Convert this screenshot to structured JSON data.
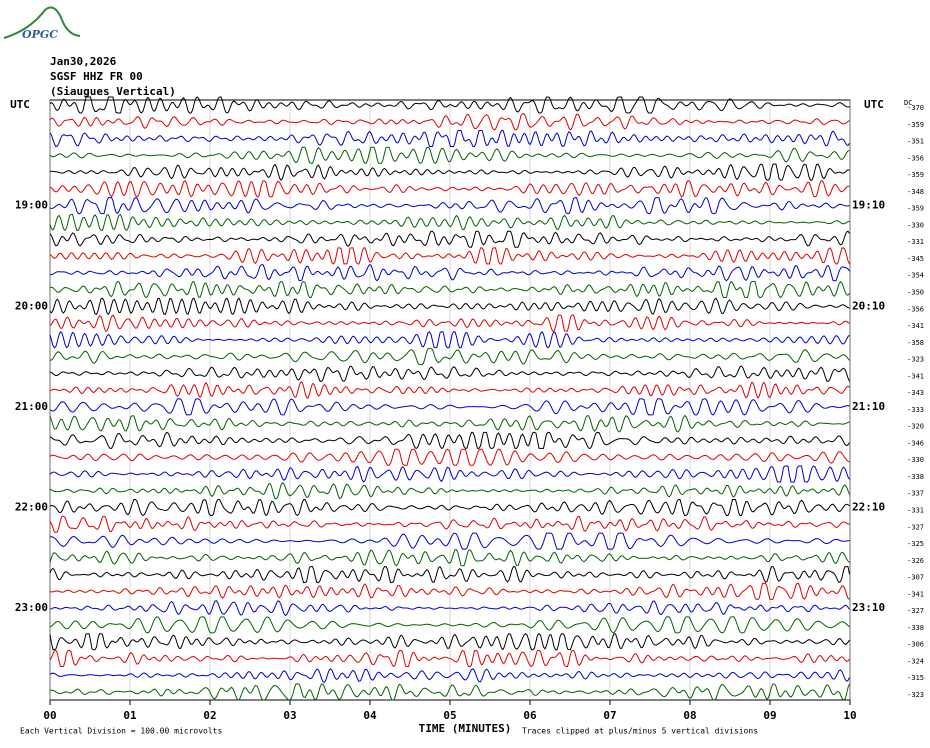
{
  "logo": "OPGC",
  "chart_data": {
    "type": "helicorder",
    "title": [
      "Jan30,2026",
      "SGSF HHZ FR 00",
      "(Siaugues Vertical)"
    ],
    "x_label": "TIME (MINUTES)",
    "xlim": [
      0,
      10
    ],
    "xticks": [
      {
        "value": 0,
        "label": "00"
      },
      {
        "value": 1,
        "label": "01"
      },
      {
        "value": 2,
        "label": "02"
      },
      {
        "value": 3,
        "label": "03"
      },
      {
        "value": 4,
        "label": "04"
      },
      {
        "value": 5,
        "label": "05"
      },
      {
        "value": 6,
        "label": "06"
      },
      {
        "value": 7,
        "label": "07"
      },
      {
        "value": 8,
        "label": "08"
      },
      {
        "value": 9,
        "label": "09"
      },
      {
        "value": 10,
        "label": "10"
      }
    ],
    "grid": true,
    "left_labels": [
      "UTC",
      "19:00",
      "20:00",
      "21:00",
      "22:00",
      "23:00"
    ],
    "right_labels": [
      "UTC",
      "19:10",
      "20:10",
      "21:10",
      "22:10",
      "23:10"
    ],
    "dc_label": "DC",
    "dc_values": [
      -370,
      -359,
      -351,
      -356,
      -359,
      -348,
      -359,
      -330,
      -331,
      -345,
      -354,
      -350,
      -356,
      -341,
      -358,
      -323,
      -341,
      -343,
      -333,
      -320,
      -346,
      -330,
      -338,
      -337,
      -331,
      -327,
      -325,
      -326,
      -307,
      -341,
      -327,
      -338,
      -306,
      -324,
      -315,
      -323
    ],
    "colors": [
      "#000000",
      "#e00000",
      "#0000d0",
      "#006400"
    ],
    "footer_left": "Each Vertical Division =  100.00 microvolts",
    "footer_right": "Traces clipped at plus/minus 5 vertical divisions"
  }
}
